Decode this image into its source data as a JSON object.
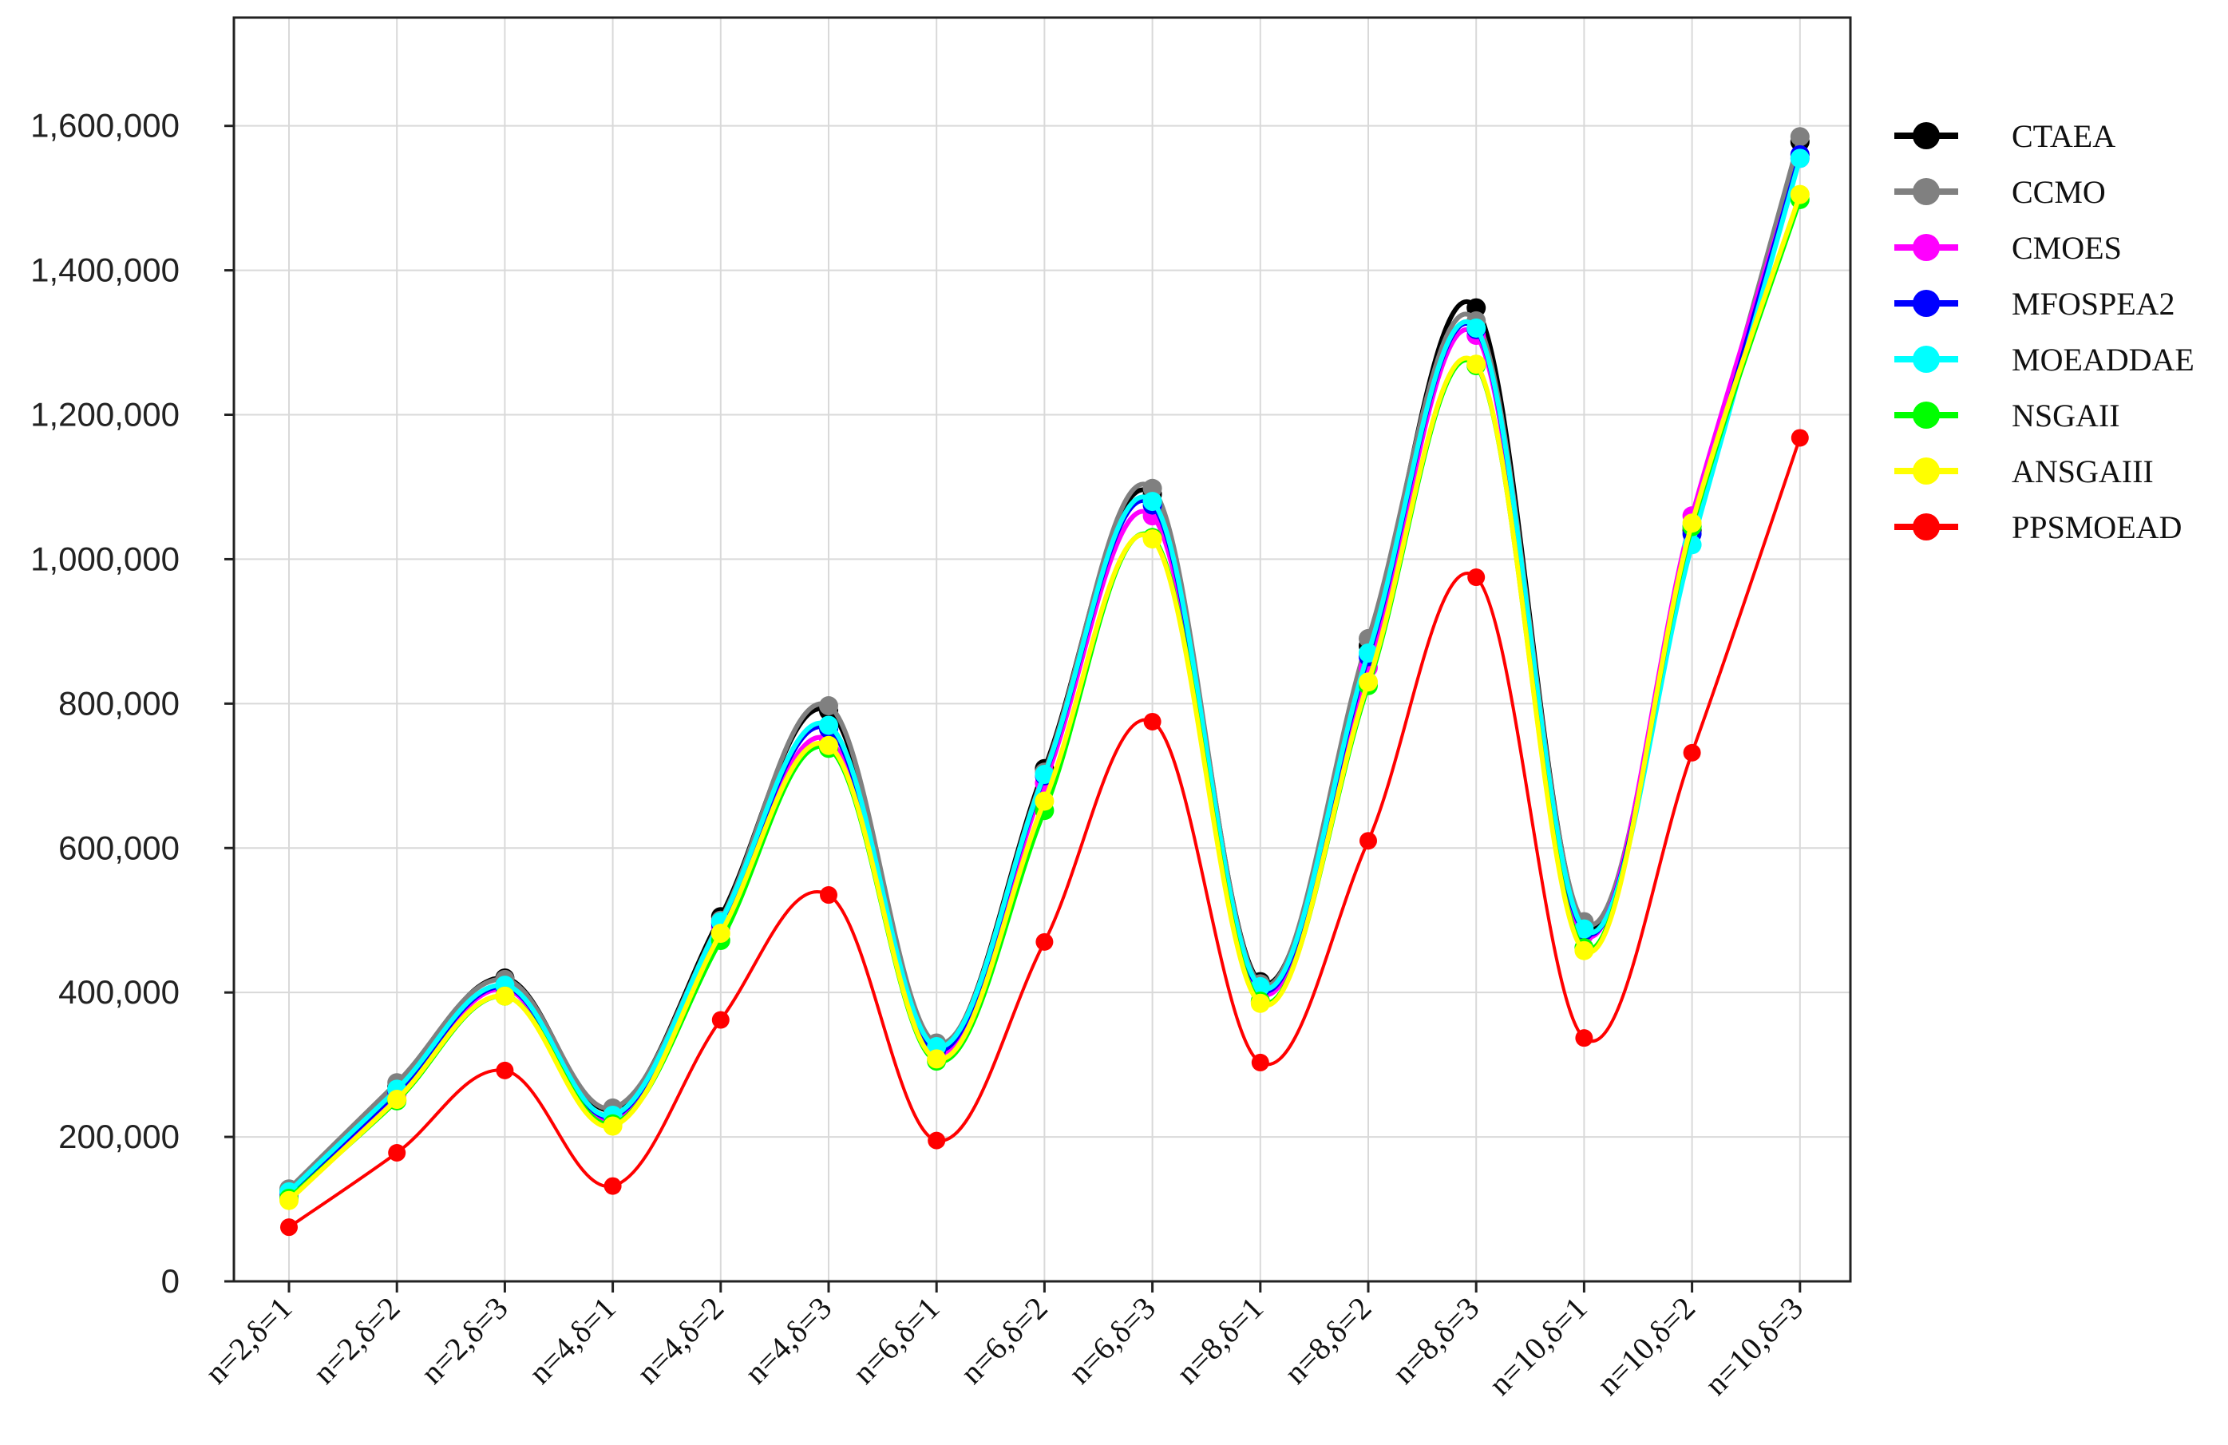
{
  "chart_data": {
    "type": "line",
    "title": "",
    "xlabel": "",
    "ylabel": "",
    "ylim": [
      0,
      1750000
    ],
    "yticks": [
      0,
      200000,
      400000,
      600000,
      800000,
      1000000,
      1200000,
      1400000,
      1600000
    ],
    "ytick_labels": [
      "0",
      "200,000",
      "400,000",
      "600,000",
      "800,000",
      "1,000,000",
      "1,200,000",
      "1,400,000",
      "1,600,000"
    ],
    "grid": true,
    "legend_position": "right",
    "categories": [
      "n=2,δ=1",
      "n=2,δ=2",
      "n=2,δ=3",
      "n=4,δ=1",
      "n=4,δ=2",
      "n=4,δ=3",
      "n=6,δ=1",
      "n=6,δ=2",
      "n=6,δ=3",
      "n=8,δ=1",
      "n=8,δ=2",
      "n=8,δ=3",
      "n=10,δ=1",
      "n=10,δ=2",
      "n=10,δ=3"
    ],
    "series": [
      {
        "name": "CTAEA",
        "color": "#000000",
        "values": [
          125000,
          270000,
          420000,
          238000,
          505000,
          790000,
          328000,
          710000,
          1090000,
          415000,
          880000,
          1348000,
          495000,
          1040000,
          1578000
        ]
      },
      {
        "name": "CCMO",
        "color": "#808080",
        "values": [
          128000,
          275000,
          418000,
          240000,
          500000,
          797000,
          330000,
          705000,
          1098000,
          412000,
          890000,
          1330000,
          498000,
          1045000,
          1585000
        ]
      },
      {
        "name": "CMOES",
        "color": "#ff00ff",
        "values": [
          120000,
          258000,
          405000,
          225000,
          490000,
          750000,
          315000,
          690000,
          1060000,
          400000,
          850000,
          1310000,
          480000,
          1060000,
          1555000
        ]
      },
      {
        "name": "MFOSPEA2",
        "color": "#0000ff",
        "values": [
          122000,
          262000,
          408000,
          228000,
          495000,
          765000,
          320000,
          700000,
          1075000,
          405000,
          865000,
          1318000,
          485000,
          1035000,
          1560000
        ]
      },
      {
        "name": "MOEADDAE",
        "color": "#00ffff",
        "values": [
          124000,
          266000,
          410000,
          230000,
          498000,
          770000,
          325000,
          702000,
          1080000,
          408000,
          870000,
          1320000,
          488000,
          1020000,
          1555000
        ]
      },
      {
        "name": "NSGAII",
        "color": "#00ff00",
        "values": [
          115000,
          250000,
          395000,
          218000,
          472000,
          738000,
          305000,
          652000,
          1030000,
          388000,
          825000,
          1268000,
          462000,
          1045000,
          1498000
        ]
      },
      {
        "name": "ANSGAIII",
        "color": "#ffff00",
        "values": [
          112000,
          252000,
          395000,
          215000,
          482000,
          742000,
          308000,
          665000,
          1028000,
          385000,
          830000,
          1270000,
          458000,
          1050000,
          1505000
        ]
      },
      {
        "name": "PPSMOEAD",
        "color": "#ff0000",
        "values": [
          75000,
          178000,
          292000,
          132000,
          362000,
          535000,
          195000,
          470000,
          775000,
          303000,
          610000,
          975000,
          337000,
          732000,
          1168000
        ]
      }
    ]
  }
}
